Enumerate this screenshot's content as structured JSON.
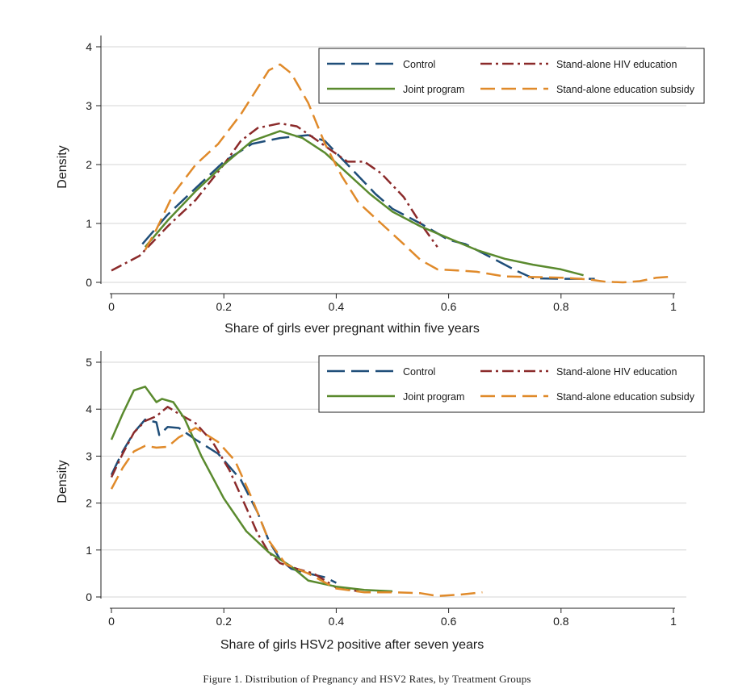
{
  "caption": "Figure 1. Distribution of Pregnancy and HSV2 Rates, by Treatment Groups",
  "series_styles": [
    {
      "name": "Control",
      "color": "#1f4e79",
      "dash": "22,8",
      "width": 2.5
    },
    {
      "name": "Stand-alone HIV education",
      "color": "#8b2a2a",
      "dash": "14,5,3,5",
      "width": 2.5
    },
    {
      "name": "Joint program",
      "color": "#5a8a2e",
      "dash": "",
      "width": 2.5
    },
    {
      "name": "Stand-alone education subsidy",
      "color": "#e08a2a",
      "dash": "18,8",
      "width": 2.5
    }
  ],
  "chart_data": [
    {
      "type": "line",
      "title": "",
      "xlabel": "Share of girls ever pregnant within five years",
      "ylabel": "Density",
      "xlim": [
        0,
        1
      ],
      "ylim": [
        0,
        4
      ],
      "xticks": [
        "0",
        "0.2",
        "0.4",
        "0.6",
        "0.8",
        "1"
      ],
      "yticks": [
        "0",
        "1",
        "2",
        "3",
        "4"
      ],
      "grid": true,
      "legend_position": "top-right",
      "series": [
        {
          "name": "Control",
          "points": [
            [
              0.055,
              0.65
            ],
            [
              0.1,
              1.15
            ],
            [
              0.15,
              1.6
            ],
            [
              0.2,
              2.05
            ],
            [
              0.25,
              2.35
            ],
            [
              0.3,
              2.45
            ],
            [
              0.35,
              2.5
            ],
            [
              0.38,
              2.4
            ],
            [
              0.42,
              2.0
            ],
            [
              0.47,
              1.5
            ],
            [
              0.5,
              1.25
            ],
            [
              0.55,
              1.0
            ],
            [
              0.6,
              0.72
            ],
            [
              0.63,
              0.65
            ],
            [
              0.67,
              0.45
            ],
            [
              0.72,
              0.2
            ],
            [
              0.75,
              0.07
            ],
            [
              0.8,
              0.06
            ],
            [
              0.86,
              0.06
            ]
          ]
        },
        {
          "name": "Stand-alone HIV education",
          "points": [
            [
              0.0,
              0.2
            ],
            [
              0.05,
              0.45
            ],
            [
              0.1,
              0.95
            ],
            [
              0.15,
              1.4
            ],
            [
              0.2,
              2.0
            ],
            [
              0.23,
              2.4
            ],
            [
              0.26,
              2.62
            ],
            [
              0.3,
              2.7
            ],
            [
              0.33,
              2.65
            ],
            [
              0.36,
              2.45
            ],
            [
              0.39,
              2.25
            ],
            [
              0.42,
              2.05
            ],
            [
              0.45,
              2.05
            ],
            [
              0.48,
              1.85
            ],
            [
              0.52,
              1.45
            ],
            [
              0.55,
              1.0
            ],
            [
              0.58,
              0.6
            ]
          ]
        },
        {
          "name": "Joint program",
          "points": [
            [
              0.06,
              0.6
            ],
            [
              0.1,
              1.05
            ],
            [
              0.15,
              1.55
            ],
            [
              0.2,
              2.0
            ],
            [
              0.25,
              2.4
            ],
            [
              0.3,
              2.57
            ],
            [
              0.34,
              2.45
            ],
            [
              0.38,
              2.2
            ],
            [
              0.42,
              1.85
            ],
            [
              0.46,
              1.5
            ],
            [
              0.5,
              1.2
            ],
            [
              0.55,
              0.95
            ],
            [
              0.6,
              0.75
            ],
            [
              0.65,
              0.55
            ],
            [
              0.7,
              0.4
            ],
            [
              0.75,
              0.3
            ],
            [
              0.8,
              0.22
            ],
            [
              0.84,
              0.12
            ]
          ]
        },
        {
          "name": "Stand-alone education subsidy",
          "points": [
            [
              0.06,
              0.55
            ],
            [
              0.08,
              0.9
            ],
            [
              0.11,
              1.5
            ],
            [
              0.15,
              2.0
            ],
            [
              0.19,
              2.35
            ],
            [
              0.23,
              2.85
            ],
            [
              0.26,
              3.3
            ],
            [
              0.28,
              3.6
            ],
            [
              0.3,
              3.7
            ],
            [
              0.32,
              3.55
            ],
            [
              0.35,
              3.05
            ],
            [
              0.38,
              2.35
            ],
            [
              0.41,
              1.8
            ],
            [
              0.44,
              1.35
            ],
            [
              0.48,
              1.0
            ],
            [
              0.52,
              0.65
            ],
            [
              0.55,
              0.38
            ],
            [
              0.58,
              0.22
            ],
            [
              0.62,
              0.2
            ],
            [
              0.65,
              0.18
            ],
            [
              0.7,
              0.1
            ],
            [
              0.75,
              0.09
            ],
            [
              0.8,
              0.08
            ],
            [
              0.85,
              0.05
            ],
            [
              0.88,
              0.01
            ],
            [
              0.91,
              0.0
            ],
            [
              0.94,
              0.02
            ],
            [
              0.97,
              0.08
            ],
            [
              1.0,
              0.1
            ]
          ]
        }
      ]
    },
    {
      "type": "line",
      "title": "",
      "xlabel": "Share of girls HSV2 positive after seven years",
      "ylabel": "Density",
      "xlim": [
        0,
        1
      ],
      "ylim": [
        0,
        5
      ],
      "xticks": [
        "0",
        "0.2",
        "0.4",
        "0.6",
        "0.8",
        "1"
      ],
      "yticks": [
        "0",
        "1",
        "2",
        "3",
        "4",
        "5"
      ],
      "grid": true,
      "legend_position": "top-right",
      "series": [
        {
          "name": "Control",
          "points": [
            [
              0.0,
              2.6
            ],
            [
              0.02,
              3.1
            ],
            [
              0.04,
              3.5
            ],
            [
              0.06,
              3.78
            ],
            [
              0.08,
              3.72
            ],
            [
              0.085,
              3.45
            ],
            [
              0.1,
              3.62
            ],
            [
              0.12,
              3.6
            ],
            [
              0.15,
              3.35
            ],
            [
              0.19,
              3.05
            ],
            [
              0.23,
              2.5
            ],
            [
              0.26,
              1.8
            ],
            [
              0.28,
              1.2
            ],
            [
              0.3,
              0.8
            ],
            [
              0.32,
              0.6
            ],
            [
              0.35,
              0.5
            ],
            [
              0.38,
              0.42
            ],
            [
              0.4,
              0.3
            ]
          ]
        },
        {
          "name": "Stand-alone HIV education",
          "points": [
            [
              0.0,
              2.55
            ],
            [
              0.02,
              3.05
            ],
            [
              0.04,
              3.5
            ],
            [
              0.06,
              3.75
            ],
            [
              0.08,
              3.85
            ],
            [
              0.1,
              4.05
            ],
            [
              0.12,
              3.9
            ],
            [
              0.15,
              3.7
            ],
            [
              0.18,
              3.3
            ],
            [
              0.21,
              2.7
            ],
            [
              0.24,
              1.9
            ],
            [
              0.26,
              1.35
            ],
            [
              0.28,
              0.95
            ],
            [
              0.3,
              0.72
            ],
            [
              0.33,
              0.6
            ],
            [
              0.36,
              0.5
            ],
            [
              0.4,
              0.2
            ],
            [
              0.44,
              0.12
            ]
          ]
        },
        {
          "name": "Joint program",
          "points": [
            [
              0.0,
              3.35
            ],
            [
              0.02,
              3.9
            ],
            [
              0.04,
              4.4
            ],
            [
              0.06,
              4.48
            ],
            [
              0.08,
              4.15
            ],
            [
              0.09,
              4.22
            ],
            [
              0.11,
              4.15
            ],
            [
              0.13,
              3.8
            ],
            [
              0.16,
              3.0
            ],
            [
              0.2,
              2.1
            ],
            [
              0.24,
              1.4
            ],
            [
              0.28,
              0.95
            ],
            [
              0.32,
              0.65
            ],
            [
              0.35,
              0.35
            ],
            [
              0.4,
              0.22
            ],
            [
              0.45,
              0.15
            ],
            [
              0.5,
              0.12
            ]
          ]
        },
        {
          "name": "Stand-alone education subsidy",
          "points": [
            [
              0.0,
              2.3
            ],
            [
              0.02,
              2.75
            ],
            [
              0.04,
              3.1
            ],
            [
              0.06,
              3.22
            ],
            [
              0.08,
              3.18
            ],
            [
              0.1,
              3.2
            ],
            [
              0.12,
              3.4
            ],
            [
              0.15,
              3.6
            ],
            [
              0.19,
              3.3
            ],
            [
              0.22,
              2.9
            ],
            [
              0.25,
              2.1
            ],
            [
              0.28,
              1.2
            ],
            [
              0.31,
              0.7
            ],
            [
              0.35,
              0.5
            ],
            [
              0.4,
              0.18
            ],
            [
              0.45,
              0.1
            ],
            [
              0.5,
              0.1
            ],
            [
              0.55,
              0.08
            ],
            [
              0.58,
              0.02
            ],
            [
              0.62,
              0.05
            ],
            [
              0.66,
              0.1
            ]
          ]
        }
      ]
    }
  ]
}
